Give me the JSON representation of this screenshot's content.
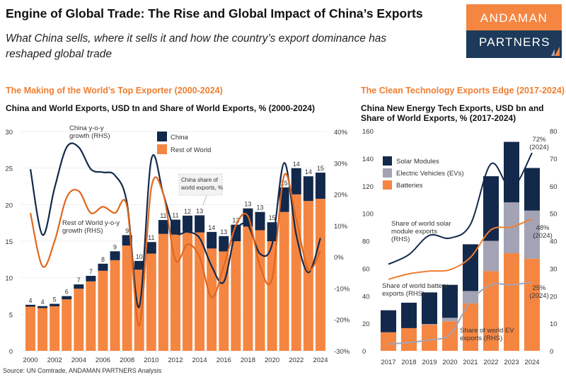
{
  "header": {
    "title": "Engine of Global Trade: The Rise and Global Impact of China’s Exports",
    "subtitle": "What China sells, where it sells it and how the country’s export dominance has reshaped global trade"
  },
  "logo": {
    "line1": "ANDAMAN",
    "line2": "PARTNERS"
  },
  "colors": {
    "accent": "#f07e30",
    "navy": "#13294b",
    "orange_bar": "#f58642",
    "grey": "#a3a3b5",
    "orange_line": "#e0671e"
  },
  "source": "Source: UN Comtrade, ANDAMAN PARTNERS Analysis",
  "chart_data": [
    {
      "type": "bar",
      "section_title": "The Making of the World’s Top Exporter (2000-2024)",
      "title": "China and World Exports, USD tn and Share of World Exports, % (2000-2024)",
      "stacked": true,
      "categories": [
        "2000",
        "2001",
        "2002",
        "2003",
        "2004",
        "2005",
        "2006",
        "2007",
        "2008",
        "2009",
        "2010",
        "2011",
        "2012",
        "2013",
        "2014",
        "2015",
        "2016",
        "2017",
        "2018",
        "2019",
        "2020",
        "2021",
        "2022",
        "2023",
        "2024"
      ],
      "ylim": [
        0,
        30
      ],
      "y_ticks": [
        "0",
        "5",
        "10",
        "15",
        "20",
        "25",
        "30"
      ],
      "y2lim": [
        -30,
        40
      ],
      "y2_ticks": [
        "-30%",
        "-20%",
        "-10%",
        "0%",
        "10%",
        "20%",
        "30%",
        "40%"
      ],
      "series": [
        {
          "name": "Rest of World",
          "values": [
            6.05,
            5.85,
            6.1,
            7.05,
            8.5,
            9.5,
            10.95,
            12.4,
            14.4,
            11.1,
            13.3,
            16.0,
            15.9,
            16.3,
            16.2,
            14.0,
            13.6,
            15.0,
            17.0,
            16.5,
            15.0,
            19.0,
            21.4,
            20.5,
            20.8
          ]
        },
        {
          "name": "China",
          "values": [
            0.25,
            0.27,
            0.33,
            0.44,
            0.59,
            0.76,
            0.97,
            1.22,
            1.43,
            1.2,
            1.58,
            1.9,
            2.05,
            2.2,
            2.34,
            2.27,
            2.1,
            2.26,
            2.49,
            2.5,
            2.59,
            3.36,
            3.59,
            3.38,
            3.58
          ]
        }
      ],
      "data_labels": [
        "4",
        "4",
        "5",
        "6",
        "7",
        "7",
        "8",
        "9",
        "9",
        "10",
        "11",
        "11",
        "11",
        "12",
        "13",
        "14",
        "13",
        "13",
        "13",
        "13",
        "15",
        "15",
        "14",
        "14",
        "15"
      ],
      "lines": [
        {
          "name": "China y-o-y growth (RHS)",
          "axis": "right",
          "values": [
            28,
            7,
            22,
            35,
            35,
            28,
            27,
            26,
            17,
            -16,
            31,
            20,
            8,
            8,
            6,
            -3,
            -8,
            8,
            10,
            1,
            4,
            30,
            7,
            -5,
            6
          ]
        },
        {
          "name": "Rest of World y-o-y growth (RHS)",
          "axis": "right",
          "values": [
            14,
            -3,
            5,
            19,
            21,
            14,
            16,
            14,
            16,
            -22,
            22,
            20,
            -1,
            4,
            0,
            -13,
            -3,
            10,
            13,
            -3,
            -7,
            26,
            12,
            -4,
            2
          ]
        }
      ],
      "annotations": {
        "china_line": [
          "China y-o-y",
          "growth (RHS)"
        ],
        "row_line": [
          "Rest of World y-o-y",
          "growth (RHS)"
        ],
        "share_callout": [
          "China share of",
          "world exports, %"
        ]
      },
      "legend": {
        "items": [
          "China",
          "Rest of World"
        ],
        "placement": "top-center"
      },
      "grid": true
    },
    {
      "type": "bar",
      "section_title": "The Clean Technology Exports Edge (2017-2024)",
      "title": "China New Energy Tech Exports, USD bn and Share of World Exports, % (2017-2024)",
      "stacked": true,
      "categories": [
        "2017",
        "2018",
        "2019",
        "2020",
        "2021",
        "2022",
        "2023",
        "2024"
      ],
      "ylim": [
        0,
        160
      ],
      "y_ticks": [
        "0",
        "20",
        "40",
        "60",
        "80",
        "100",
        "120",
        "140",
        "160"
      ],
      "y2lim": [
        0,
        80
      ],
      "y2_ticks": [
        "0",
        "10",
        "20",
        "30",
        "40",
        "50",
        "60",
        "70",
        "80"
      ],
      "series": [
        {
          "name": "Batteries",
          "values": [
            13.5,
            16.5,
            19,
            21.5,
            34.5,
            58,
            71,
            67
          ]
        },
        {
          "name": "Electric Vehicles (EVs)",
          "values": [
            0,
            0,
            0.5,
            2.5,
            9,
            22,
            37,
            35
          ]
        },
        {
          "name": "Solar Modules",
          "values": [
            16,
            18.5,
            23,
            24,
            34,
            47,
            44,
            31
          ]
        }
      ],
      "lines": [
        {
          "name": "Share of world solar module exports (RHS)",
          "axis": "right",
          "values": [
            31.5,
            35,
            42,
            41,
            46,
            68,
            59,
            72
          ]
        },
        {
          "name": "Share of world battery exports (RHS)",
          "axis": "right",
          "values": [
            26,
            28,
            29,
            29.5,
            34,
            44,
            45,
            48
          ]
        },
        {
          "name": "Share of world EV exports (RHS)",
          "axis": "right",
          "values": [
            2.5,
            3,
            4,
            6,
            18,
            24,
            24,
            25
          ]
        }
      ],
      "line_annotations": [
        [
          "Share of world solar",
          "module exports",
          "(RHS)"
        ],
        [
          "Share of world battery",
          "exports (RHS)"
        ],
        [
          "Share of world EV",
          "exports (RHS)"
        ]
      ],
      "end_labels": [
        [
          "72%",
          "(2024)"
        ],
        [
          "48%",
          "(2024)"
        ],
        [
          "25%",
          "(2024)"
        ]
      ],
      "legend": {
        "items": [
          "Solar Modules",
          "Electric Vehicles (EVs)",
          "Batteries"
        ],
        "placement": "top-left"
      },
      "grid": false
    }
  ]
}
